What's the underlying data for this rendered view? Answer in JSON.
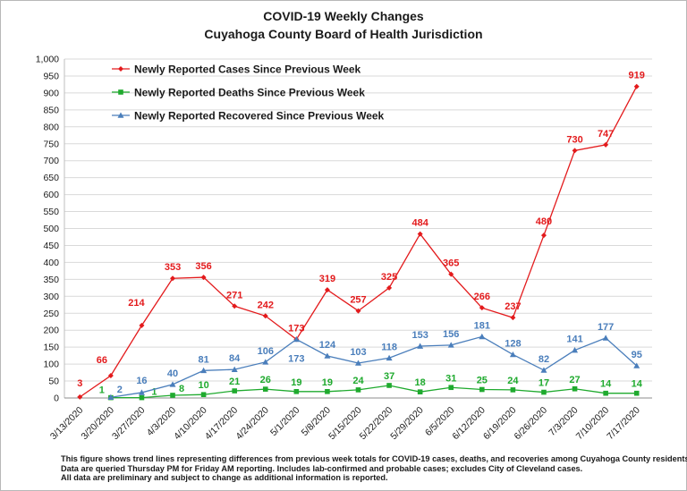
{
  "chart_data": {
    "type": "line",
    "title": "COVID-19 Weekly Changes",
    "subtitle": "Cuyahoga County Board of Health Jurisdiction",
    "xlabel": "",
    "ylabel": "",
    "ylim": [
      0,
      1000
    ],
    "yticks": [
      "0",
      "50",
      "100",
      "150",
      "200",
      "250",
      "300",
      "350",
      "400",
      "450",
      "500",
      "550",
      "600",
      "650",
      "700",
      "750",
      "800",
      "850",
      "900",
      "950",
      "1,000"
    ],
    "grid": true,
    "legend_position": "top-left",
    "x": [
      "3/13/2020",
      "3/20/2020",
      "3/27/2020",
      "4/3/2020",
      "4/10/2020",
      "4/17/2020",
      "4/24/2020",
      "5/1/2020",
      "5/8/2020",
      "5/15/2020",
      "5/22/2020",
      "5/29/2020",
      "6/5/2020",
      "6/12/2020",
      "6/19/2020",
      "6/26/2020",
      "7/3/2020",
      "7/10/2020",
      "7/17/2020"
    ],
    "series": [
      {
        "name": "Newly Reported Cases Since Previous Week",
        "color": "#e31a1c",
        "marker": "diamond",
        "values": [
          3,
          66,
          214,
          353,
          356,
          271,
          242,
          173,
          319,
          257,
          325,
          484,
          365,
          266,
          237,
          480,
          730,
          747,
          919
        ],
        "labels": [
          "3",
          "66",
          "214",
          "353",
          "356",
          "271",
          "242",
          "173",
          "319",
          "257",
          "325",
          "484",
          "365",
          "266",
          "237",
          "480",
          "730",
          "747",
          "919"
        ]
      },
      {
        "name": "Newly Reported Deaths Since Previous Week",
        "color": "#1faa2e",
        "marker": "square",
        "values": [
          null,
          1,
          1,
          8,
          10,
          21,
          26,
          19,
          19,
          24,
          37,
          18,
          31,
          25,
          24,
          17,
          27,
          14,
          14
        ],
        "labels": [
          null,
          "1",
          "1",
          "8",
          "10",
          "21",
          "26",
          "19",
          "19",
          "24",
          "37",
          "18",
          "31",
          "25",
          "24",
          "17",
          "27",
          "14",
          "14"
        ]
      },
      {
        "name": "Newly Reported Recovered Since Previous Week",
        "color": "#4a7ebb",
        "marker": "triangle",
        "values": [
          null,
          2,
          16,
          40,
          81,
          84,
          106,
          173,
          124,
          103,
          118,
          153,
          156,
          181,
          128,
          82,
          141,
          177,
          95
        ],
        "labels": [
          null,
          "2",
          "16",
          "40",
          "81",
          "84",
          "106",
          "173",
          "124",
          "103",
          "118",
          "153",
          "156",
          "181",
          "128",
          "82",
          "141",
          "177",
          "95"
        ]
      }
    ]
  },
  "notes": [
    "This figure shows trend lines representing differences from previous week totals for COVID-19 cases, deaths, and recoveries among Cuyahoga County residents.",
    "Data are queried Thursday PM for Friday AM reporting. Includes lab-confirmed and probable cases; excludes City of Cleveland cases.",
    "All data are preliminary and subject to change as additional information is reported."
  ]
}
